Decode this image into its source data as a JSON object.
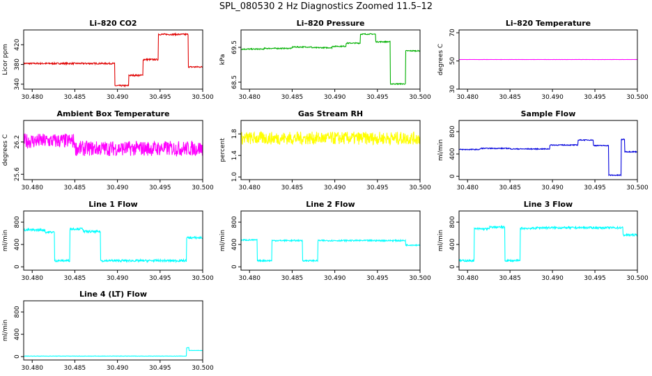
{
  "figure": {
    "title": "SPL_080530  2 Hz Diagnostics Zoomed 11.5–12"
  },
  "colors": {
    "red": "#e00000",
    "green": "#00b000",
    "magenta": "#ff00ff",
    "yellow": "#ffff00",
    "blue": "#0000dd",
    "cyan": "#00ffff"
  },
  "chart_data": [
    {
      "type": "line",
      "title": "Li–820 CO2",
      "ylabel": "Licor ppm",
      "color_key": "red",
      "xlim": [
        30.479,
        30.5
      ],
      "ylim": [
        330,
        450
      ],
      "xticks": [
        "30.480",
        "30.485",
        "30.490",
        "30.495",
        "30.500"
      ],
      "xtick_values": [
        30.48,
        30.485,
        30.49,
        30.495,
        30.5
      ],
      "yticks": [
        "340",
        "380",
        "420"
      ],
      "ytick_values": [
        340,
        380,
        420
      ],
      "noise": 1.5,
      "segments": [
        {
          "x0": 30.479,
          "x1": 30.4897,
          "y": 382
        },
        {
          "x0": 30.4897,
          "x1": 30.4913,
          "y": 337
        },
        {
          "x0": 30.4913,
          "x1": 30.493,
          "y": 358
        },
        {
          "x0": 30.493,
          "x1": 30.4948,
          "y": 390
        },
        {
          "x0": 30.4948,
          "x1": 30.4983,
          "y": 441
        },
        {
          "x0": 30.4983,
          "x1": 30.5,
          "y": 375
        }
      ]
    },
    {
      "type": "line",
      "title": "Li–820 Pressure",
      "ylabel": "kPa",
      "color_key": "green",
      "xlim": [
        30.479,
        30.5
      ],
      "ylim": [
        68.3,
        70.0
      ],
      "xticks": [
        "30.480",
        "30.485",
        "30.490",
        "30.495",
        "30.500"
      ],
      "xtick_values": [
        30.48,
        30.485,
        30.49,
        30.495,
        30.5
      ],
      "yticks": [
        "68.5",
        "69.5"
      ],
      "ytick_values": [
        68.5,
        69.5
      ],
      "noise": 0.015,
      "segments": [
        {
          "x0": 30.479,
          "x1": 30.4817,
          "y": 69.45
        },
        {
          "x0": 30.4817,
          "x1": 30.485,
          "y": 69.47
        },
        {
          "x0": 30.485,
          "x1": 30.4873,
          "y": 69.51
        },
        {
          "x0": 30.4873,
          "x1": 30.4897,
          "y": 69.49
        },
        {
          "x0": 30.4897,
          "x1": 30.4913,
          "y": 69.53
        },
        {
          "x0": 30.4913,
          "x1": 30.493,
          "y": 69.62
        },
        {
          "x0": 30.493,
          "x1": 30.4948,
          "y": 69.88
        },
        {
          "x0": 30.4948,
          "x1": 30.4965,
          "y": 69.66
        },
        {
          "x0": 30.4965,
          "x1": 30.4983,
          "y": 68.45
        },
        {
          "x0": 30.4983,
          "x1": 30.5,
          "y": 69.4
        }
      ]
    },
    {
      "type": "line",
      "title": "Li–820 Temperature",
      "ylabel": "degrees C",
      "color_key": "magenta",
      "xlim": [
        30.479,
        30.5
      ],
      "ylim": [
        30,
        72
      ],
      "xticks": [
        "30.480",
        "30.485",
        "30.490",
        "30.495",
        "30.500"
      ],
      "xtick_values": [
        30.48,
        30.485,
        30.49,
        30.495,
        30.5
      ],
      "yticks": [
        "30",
        "50",
        "70"
      ],
      "ytick_values": [
        30,
        50,
        70
      ],
      "noise": 0.05,
      "segments": [
        {
          "x0": 30.479,
          "x1": 30.5,
          "y": 51
        }
      ]
    },
    {
      "type": "line",
      "title": "Ambient Box Temperature",
      "ylabel": "degrees C",
      "color_key": "magenta",
      "xlim": [
        30.479,
        30.5
      ],
      "ylim": [
        25.5,
        26.6
      ],
      "xticks": [
        "30.480",
        "30.485",
        "30.490",
        "30.495",
        "30.500"
      ],
      "xtick_values": [
        30.48,
        30.485,
        30.49,
        30.495,
        30.5
      ],
      "yticks": [
        "25.6",
        "26.2"
      ],
      "ytick_values": [
        25.6,
        26.2
      ],
      "noise": 0.14,
      "segments": [
        {
          "x0": 30.479,
          "x1": 30.485,
          "y": 26.22
        },
        {
          "x0": 30.485,
          "x1": 30.5,
          "y": 26.08
        }
      ]
    },
    {
      "type": "line",
      "title": "Gas Stream RH",
      "ylabel": "percent",
      "color_key": "yellow",
      "xlim": [
        30.479,
        30.5
      ],
      "ylim": [
        0.95,
        2.05
      ],
      "xticks": [
        "30.480",
        "30.485",
        "30.490",
        "30.495",
        "30.500"
      ],
      "xtick_values": [
        30.48,
        30.485,
        30.49,
        30.495,
        30.5
      ],
      "yticks": [
        "1.0",
        "1.4",
        "1.8"
      ],
      "ytick_values": [
        1.0,
        1.4,
        1.8
      ],
      "noise": 0.12,
      "segments": [
        {
          "x0": 30.479,
          "x1": 30.5,
          "y": 1.72
        }
      ]
    },
    {
      "type": "line",
      "title": "Sample Flow",
      "ylabel": "ml/min",
      "color_key": "blue",
      "xlim": [
        30.479,
        30.5
      ],
      "ylim": [
        -60,
        1000
      ],
      "xticks": [
        "30.480",
        "30.485",
        "30.490",
        "30.495",
        "30.500"
      ],
      "xtick_values": [
        30.48,
        30.485,
        30.49,
        30.495,
        30.5
      ],
      "yticks": [
        "0",
        "400",
        "800"
      ],
      "ytick_values": [
        0,
        400,
        800
      ],
      "noise": 8,
      "segments": [
        {
          "x0": 30.479,
          "x1": 30.4815,
          "y": 480
        },
        {
          "x0": 30.4815,
          "x1": 30.485,
          "y": 500
        },
        {
          "x0": 30.485,
          "x1": 30.4897,
          "y": 490
        },
        {
          "x0": 30.4897,
          "x1": 30.493,
          "y": 560
        },
        {
          "x0": 30.493,
          "x1": 30.4948,
          "y": 650
        },
        {
          "x0": 30.4948,
          "x1": 30.4966,
          "y": 550
        },
        {
          "x0": 30.4966,
          "x1": 30.4981,
          "y": 20
        },
        {
          "x0": 30.4981,
          "x1": 30.4985,
          "y": 660
        },
        {
          "x0": 30.4985,
          "x1": 30.5,
          "y": 440
        }
      ]
    },
    {
      "type": "line",
      "title": "Line 1 Flow",
      "ylabel": "ml/min",
      "color_key": "cyan",
      "xlim": [
        30.479,
        30.5
      ],
      "ylim": [
        -60,
        1000
      ],
      "xticks": [
        "30.480",
        "30.485",
        "30.490",
        "30.495",
        "30.500"
      ],
      "xtick_values": [
        30.48,
        30.485,
        30.49,
        30.495,
        30.5
      ],
      "yticks": [
        "0",
        "400",
        "800"
      ],
      "ytick_values": [
        0,
        400,
        800
      ],
      "noise": 20,
      "segments": [
        {
          "x0": 30.479,
          "x1": 30.4815,
          "y": 660
        },
        {
          "x0": 30.4815,
          "x1": 30.4826,
          "y": 620
        },
        {
          "x0": 30.4826,
          "x1": 30.4844,
          "y": 110
        },
        {
          "x0": 30.4844,
          "x1": 30.486,
          "y": 680
        },
        {
          "x0": 30.486,
          "x1": 30.488,
          "y": 630
        },
        {
          "x0": 30.488,
          "x1": 30.4981,
          "y": 110
        },
        {
          "x0": 30.4981,
          "x1": 30.5,
          "y": 520
        }
      ]
    },
    {
      "type": "line",
      "title": "Line 2 Flow",
      "ylabel": "ml/min",
      "color_key": "cyan",
      "xlim": [
        30.479,
        30.5
      ],
      "ylim": [
        -60,
        1000
      ],
      "xticks": [
        "30.480",
        "30.485",
        "30.490",
        "30.495",
        "30.500"
      ],
      "xtick_values": [
        30.48,
        30.485,
        30.49,
        30.495,
        30.5
      ],
      "yticks": [
        "0",
        "400",
        "800"
      ],
      "ytick_values": [
        0,
        400,
        800
      ],
      "noise": 12,
      "segments": [
        {
          "x0": 30.479,
          "x1": 30.4809,
          "y": 480
        },
        {
          "x0": 30.4809,
          "x1": 30.4826,
          "y": 110
        },
        {
          "x0": 30.4826,
          "x1": 30.4862,
          "y": 470
        },
        {
          "x0": 30.4862,
          "x1": 30.488,
          "y": 110
        },
        {
          "x0": 30.488,
          "x1": 30.4983,
          "y": 470
        },
        {
          "x0": 30.4983,
          "x1": 30.5,
          "y": 390
        }
      ]
    },
    {
      "type": "line",
      "title": "Line 3 Flow",
      "ylabel": "ml/min",
      "color_key": "cyan",
      "xlim": [
        30.479,
        30.5
      ],
      "ylim": [
        -60,
        1000
      ],
      "xticks": [
        "30.480",
        "30.485",
        "30.490",
        "30.495",
        "30.500"
      ],
      "xtick_values": [
        30.48,
        30.485,
        30.49,
        30.495,
        30.5
      ],
      "yticks": [
        "0",
        "400",
        "800"
      ],
      "ytick_values": [
        0,
        400,
        800
      ],
      "noise": 18,
      "segments": [
        {
          "x0": 30.479,
          "x1": 30.4808,
          "y": 110
        },
        {
          "x0": 30.4808,
          "x1": 30.4826,
          "y": 680
        },
        {
          "x0": 30.4826,
          "x1": 30.4844,
          "y": 710
        },
        {
          "x0": 30.4844,
          "x1": 30.4862,
          "y": 110
        },
        {
          "x0": 30.4862,
          "x1": 30.488,
          "y": 690
        },
        {
          "x0": 30.488,
          "x1": 30.4983,
          "y": 700
        },
        {
          "x0": 30.4983,
          "x1": 30.5,
          "y": 570
        }
      ]
    },
    {
      "type": "line",
      "title": "Line 4 (LT) Flow",
      "ylabel": "ml/min",
      "color_key": "cyan",
      "xlim": [
        30.479,
        30.5
      ],
      "ylim": [
        -60,
        1000
      ],
      "xticks": [
        "30.480",
        "30.485",
        "30.490",
        "30.495",
        "30.500"
      ],
      "xtick_values": [
        30.48,
        30.485,
        30.49,
        30.495,
        30.5
      ],
      "yticks": [
        "0",
        "400",
        "800"
      ],
      "ytick_values": [
        0,
        400,
        800
      ],
      "noise": 3,
      "segments": [
        {
          "x0": 30.479,
          "x1": 30.4981,
          "y": 10
        },
        {
          "x0": 30.4981,
          "x1": 30.4984,
          "y": 160
        },
        {
          "x0": 30.4984,
          "x1": 30.5,
          "y": 110
        }
      ]
    }
  ]
}
